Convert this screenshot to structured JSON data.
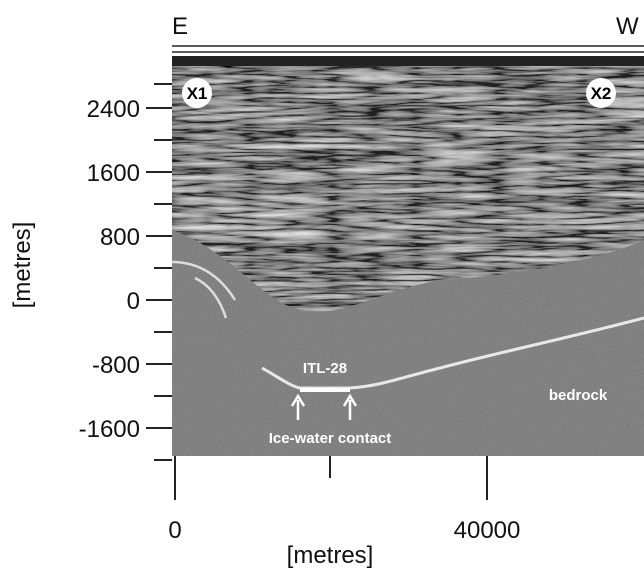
{
  "header": {
    "left": "E",
    "right": "W"
  },
  "markers": [
    "X1",
    "X2"
  ],
  "y_axis": {
    "label": "[metres]",
    "ticks": [
      "2400",
      "1600",
      "800",
      "0",
      "-800",
      "-1600"
    ]
  },
  "x_axis": {
    "label": "[metres]",
    "ticks": [
      "0",
      "40000"
    ]
  },
  "annotations": {
    "feature": "ITL-28",
    "contact": "Ice-water contact",
    "bedrock": "bedrock"
  }
}
